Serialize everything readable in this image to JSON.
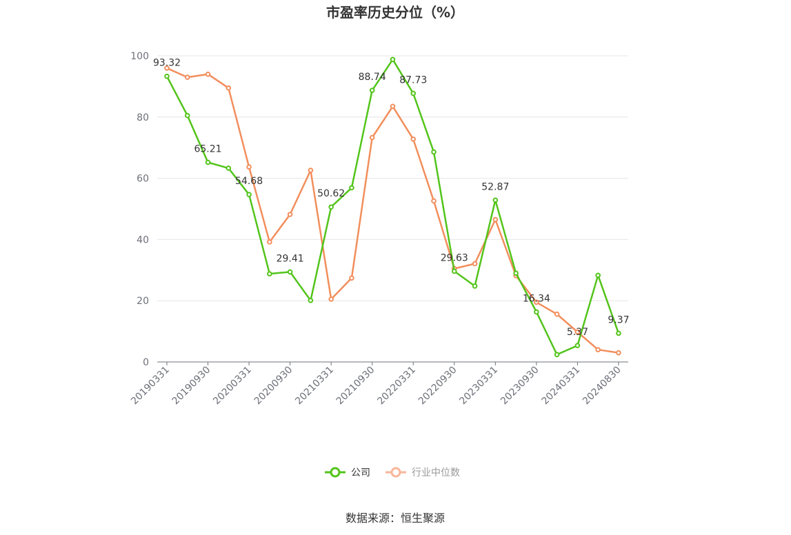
{
  "chart_data": {
    "type": "line",
    "title": "市盈率历史分位（%）",
    "ylim": [
      0,
      100
    ],
    "yticks": [
      "0",
      "20",
      "40",
      "60",
      "80",
      "100"
    ],
    "x_labels": [
      "20190331",
      "20190930",
      "20200331",
      "20200930",
      "20210331",
      "20210930",
      "20220331",
      "20220930",
      "20230331",
      "20230930",
      "20240331",
      "20240830"
    ],
    "grid": true,
    "legend_position": "bottom-center",
    "series": [
      {
        "name": "公司",
        "color": "#52c41a",
        "values": [
          93.32,
          80.5,
          65.21,
          63.3,
          54.68,
          28.8,
          29.41,
          20.1,
          50.62,
          56.9,
          88.74,
          98.8,
          87.73,
          68.6,
          29.63,
          24.8,
          52.87,
          29.0,
          16.34,
          2.4,
          5.37,
          28.3,
          9.37
        ],
        "labels": {
          "0": "93.32",
          "2": "65.21",
          "4": "54.68",
          "6": "29.41",
          "8": "50.62",
          "10": "88.74",
          "12": "87.73",
          "14": "29.63",
          "16": "52.87",
          "18": "16.34",
          "20": "5.37",
          "22": "9.37"
        }
      },
      {
        "name": "行业中位数",
        "color": "#f28e5c",
        "values": [
          96.0,
          93.0,
          94.0,
          89.5,
          63.7,
          39.2,
          48.2,
          62.6,
          20.5,
          27.4,
          73.3,
          83.5,
          72.8,
          52.6,
          30.5,
          32.1,
          46.5,
          28.2,
          19.5,
          15.6,
          9.8,
          4.0,
          3.0
        ]
      }
    ]
  },
  "legend": {
    "company": "公司",
    "industry": "行业中位数"
  },
  "source": "数据来源：恒生聚源"
}
